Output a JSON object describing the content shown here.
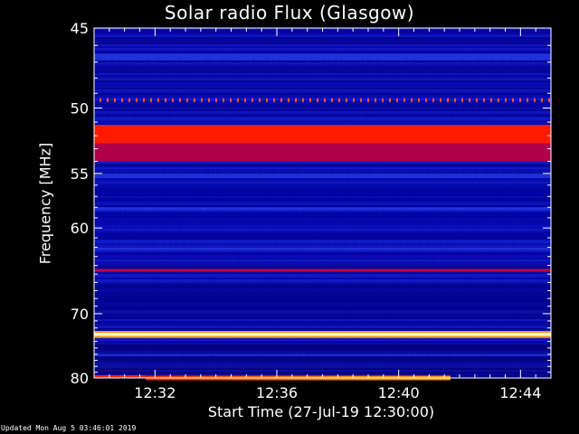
{
  "chart_data": {
    "type": "heatmap",
    "title": "Solar radio Flux (Glasgow)",
    "xlabel": "Start Time (27-Jul-19 12:30:00)",
    "ylabel": "Frequency [MHz]",
    "x_ticks": [
      "12:32",
      "12:36",
      "12:40",
      "12:44"
    ],
    "x_tick_minutes": [
      2,
      6,
      10,
      14
    ],
    "x_range_minutes": [
      0,
      15
    ],
    "y_ticks": [
      45,
      50,
      55,
      60,
      70,
      80
    ],
    "y_range": [
      45,
      80
    ],
    "y_scale": "reciprocal",
    "colormap": [
      "#000020",
      "#0000c0",
      "#2040ff",
      "#8000a0",
      "#ff0000",
      "#ff8000",
      "#ffff80",
      "#ffffff"
    ],
    "emission_bands": [
      {
        "freq_from": 51.2,
        "freq_to": 52.6,
        "color": "#ff1a00"
      },
      {
        "freq_from": 52.6,
        "freq_to": 54.0,
        "color": "#b0004a"
      },
      {
        "freq_from": 64.4,
        "freq_to": 64.7,
        "color": "#c0003a"
      },
      {
        "freq_from": 72.7,
        "freq_to": 73.2,
        "color": "#ffffd0"
      }
    ]
  },
  "footer": {
    "updated": "Updated Mon Aug  5 03:46:01 2019"
  }
}
